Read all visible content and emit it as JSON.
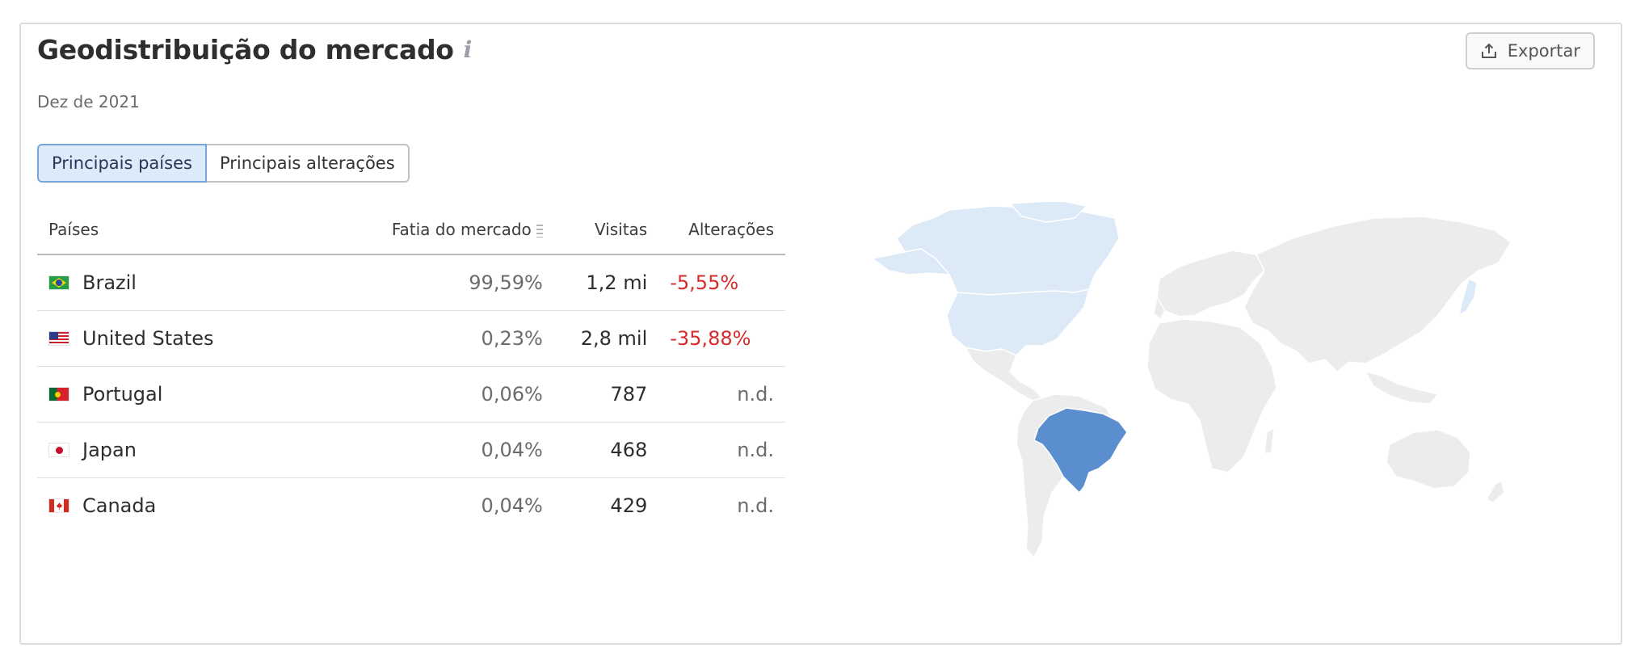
{
  "header": {
    "title": "Geodistribuição do mercado",
    "info_icon": "info-icon",
    "subtitle": "Dez de 2021",
    "export_label": "Exportar",
    "export_icon": "upload-icon"
  },
  "tabs": [
    {
      "label": "Principais países",
      "active": true
    },
    {
      "label": "Principais alterações",
      "active": false
    }
  ],
  "table": {
    "columns": {
      "country": "Países",
      "share": "Fatia do mercado",
      "visits": "Visitas",
      "change": "Alterações"
    },
    "rows": [
      {
        "country": "Brazil",
        "flag": "brazil-flag-icon",
        "share": "99,59%",
        "visits": "1,2 mi",
        "change": "-5,55%"
      },
      {
        "country": "United States",
        "flag": "us-flag-icon",
        "share": "0,23%",
        "visits": "2,8 mil",
        "change": "-35,88%"
      },
      {
        "country": "Portugal",
        "flag": "portugal-flag-icon",
        "share": "0,06%",
        "visits": "787",
        "change": "n.d."
      },
      {
        "country": "Japan",
        "flag": "japan-flag-icon",
        "share": "0,04%",
        "visits": "468",
        "change": "n.d."
      },
      {
        "country": "Canada",
        "flag": "canada-flag-icon",
        "share": "0,04%",
        "visits": "429",
        "change": "n.d."
      }
    ]
  },
  "map": {
    "highlight_primary": "Brazil",
    "highlight_secondary": [
      "United States",
      "Canada",
      "Japan",
      "Portugal"
    ],
    "colors": {
      "primary": "#5b8ecf",
      "secondary": "#dce9f6",
      "other": "#ececec",
      "negative_change": "#d62b2b",
      "active_tab_bg": "#dceaf9"
    }
  }
}
